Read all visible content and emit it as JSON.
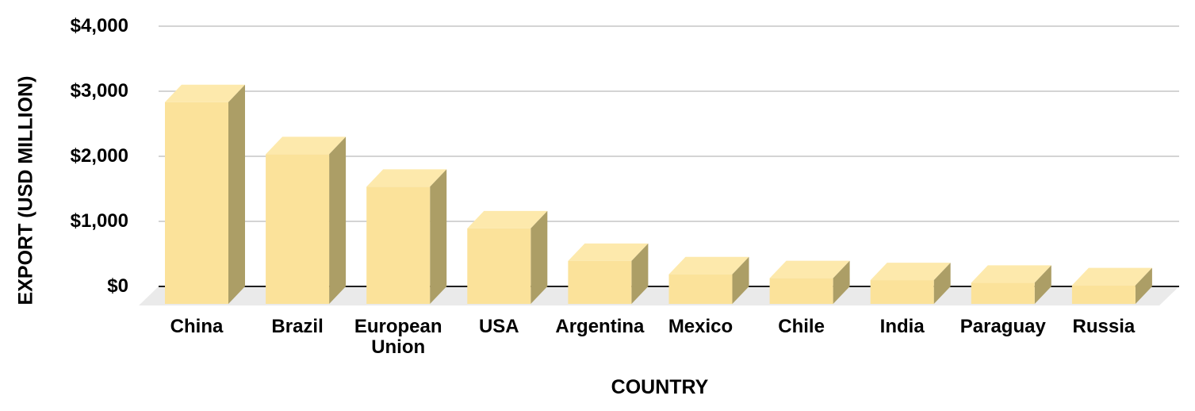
{
  "chart_data": {
    "type": "bar",
    "style": "3d-columns",
    "title": "",
    "xlabel": "COUNTRY",
    "ylabel": "EXPORT (USD MILLION)",
    "categories": [
      "China",
      "Brazil",
      "European Union",
      "USA",
      "Argentina",
      "Mexico",
      "Chile",
      "India",
      "Paraguay",
      "Russia"
    ],
    "values": [
      3100,
      2300,
      1800,
      1160,
      660,
      455,
      395,
      365,
      325,
      285
    ],
    "ylim": [
      0,
      4000
    ],
    "yticks": [
      {
        "value": 0,
        "label": "$0"
      },
      {
        "value": 1000,
        "label": "$1,000"
      },
      {
        "value": 2000,
        "label": "$2,000"
      },
      {
        "value": 3000,
        "label": "$3,000"
      },
      {
        "value": 4000,
        "label": "$4,000"
      }
    ],
    "grid": true,
    "legend": false,
    "colors": {
      "bar_front": "#FBE29A",
      "bar_top": "#FDE9AC",
      "bar_side": "#AC9E66",
      "floor": "#EAEAEA",
      "gridline": "#D4D4D4",
      "axis_line": "#1F1F1F",
      "text": "#000000",
      "background": "#FFFFFF"
    }
  }
}
